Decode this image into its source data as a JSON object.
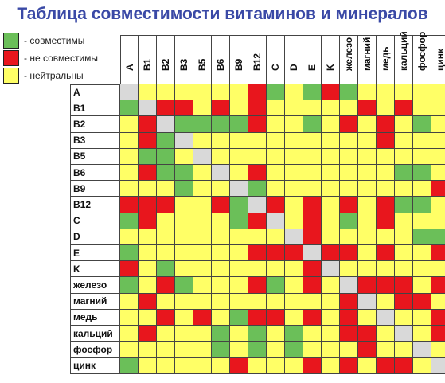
{
  "title": "Таблица совместимости витаминов и минералов",
  "legend": [
    {
      "label": "- совместимы",
      "color": "#6bbf59"
    },
    {
      "label": "- не совместимы",
      "color": "#e8161d"
    },
    {
      "label": "- нейтральны",
      "color": "#ffff66"
    }
  ],
  "colors": {
    "G": "#6bbf59",
    "R": "#e8161d",
    "Y": "#ffff66",
    "X": "#d9d9d9"
  },
  "columns": [
    "A",
    "B1",
    "B2",
    "B3",
    "B5",
    "B6",
    "B9",
    "B12",
    "C",
    "D",
    "E",
    "K",
    "железо",
    "магний",
    "медь",
    "кальций",
    "фосфор",
    "цинк"
  ],
  "rows": [
    "A",
    "B1",
    "B2",
    "B3",
    "B5",
    "B6",
    "B9",
    "B12",
    "C",
    "D",
    "E",
    "K",
    "железо",
    "магний",
    "медь",
    "кальций",
    "фосфор",
    "цинк"
  ],
  "matrix": [
    "XYYYYYYRGYGRGYYYYY",
    "GXRRYRYRYYYYYRYRYY",
    "YRXGGGGRYYGYRYRYGY",
    "YRGXYYYYYYYYYYRYYY",
    "YGGYXYYYYYYYYYYYYY",
    "YRGGYXYRYYYYYYYGGY",
    "YYYGYYXGYYYYYYYYYR",
    "RRRYYRGXRYRYRYRGGY",
    "GRYYYYGRXYRYGYRYYY",
    "YYYYYYYYYXRYYYYYGG",
    "GYYYYYYRRRXRRYRYYR",
    "RYGYYYYYYYRXYYYYYY",
    "GYRGYYYRGYRYXRRRYR",
    "YRYYYYYYYYYYRXYRRY",
    "YYRYRYGRRYRYRYXYYR",
    "YRYYYGYGYGYYRRYXYR",
    "YYYYYGYGYGYYYRYYXY",
    "GYYYYYRYYYRYRYRRYX"
  ]
}
